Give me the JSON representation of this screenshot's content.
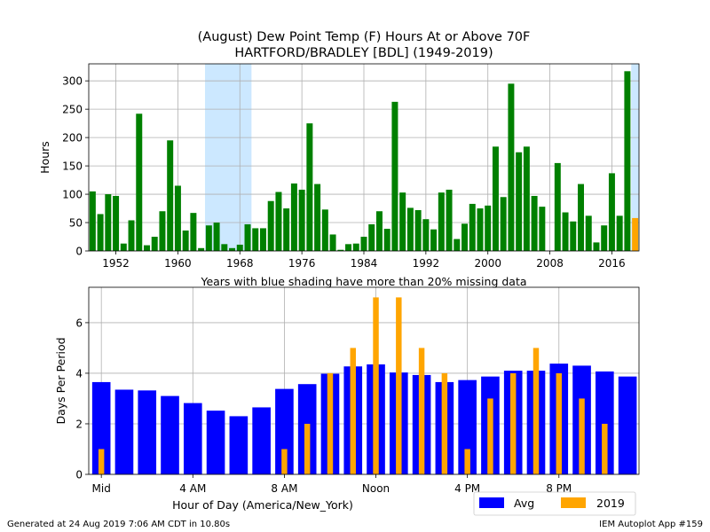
{
  "title_line1": "(August) Dew Point Temp (F) Hours At or Above 70F",
  "title_line2": "HARTFORD/BRADLEY [BDL] (1949-2019)",
  "footer_left": "Generated at 24 Aug 2019 7:06 AM CDT in 10.80s",
  "footer_right": "IEM Autoplot App #159",
  "colors": {
    "bar": "#008000",
    "current": "#ffa500",
    "missing_shade": "#cce8ff",
    "avg": "#0000ff",
    "grid": "#b0b0b0"
  },
  "chart_data": [
    {
      "type": "bar",
      "ylabel": "Hours",
      "note": "Years with blue shading have more than 20% missing data",
      "xlim": [
        1948.5,
        2019.5
      ],
      "ylim": [
        0,
        330
      ],
      "xticks": [
        1952,
        1960,
        1968,
        1976,
        1984,
        1992,
        2000,
        2008,
        2016
      ],
      "yticks": [
        0,
        50,
        100,
        150,
        200,
        250,
        300
      ],
      "grid": true,
      "years": [
        1949,
        1950,
        1951,
        1952,
        1953,
        1954,
        1955,
        1956,
        1957,
        1958,
        1959,
        1960,
        1961,
        1962,
        1963,
        1964,
        1965,
        1966,
        1967,
        1968,
        1969,
        1970,
        1971,
        1972,
        1973,
        1974,
        1975,
        1976,
        1977,
        1978,
        1979,
        1980,
        1981,
        1982,
        1983,
        1984,
        1985,
        1986,
        1987,
        1988,
        1989,
        1990,
        1991,
        1992,
        1993,
        1994,
        1995,
        1996,
        1997,
        1998,
        1999,
        2000,
        2001,
        2002,
        2003,
        2004,
        2005,
        2006,
        2007,
        2008,
        2009,
        2010,
        2011,
        2012,
        2013,
        2014,
        2015,
        2016,
        2017,
        2018,
        2019
      ],
      "values": [
        105,
        65,
        100,
        97,
        13,
        54,
        242,
        10,
        25,
        70,
        195,
        115,
        36,
        67,
        5,
        45,
        50,
        12,
        5,
        11,
        47,
        40,
        40,
        88,
        104,
        75,
        119,
        108,
        225,
        118,
        73,
        29,
        2,
        12,
        13,
        25,
        47,
        70,
        39,
        263,
        103,
        76,
        72,
        56,
        38,
        103,
        108,
        21,
        48,
        83,
        75,
        80,
        184,
        95,
        295,
        174,
        184,
        97,
        78,
        0,
        155,
        68,
        52,
        118,
        62,
        15,
        45,
        137,
        62,
        317,
        58
      ],
      "highlight_year": 2019,
      "shaded_years": [
        1964,
        1965,
        1966,
        1967,
        1968,
        1969,
        2019
      ]
    },
    {
      "type": "bar",
      "xlabel": "Hour of Day (America/New_York)",
      "ylabel": "Days Per Period",
      "xlim": [
        -0.55,
        23.5
      ],
      "ylim": [
        0,
        7.4
      ],
      "xticks": [
        0,
        4,
        8,
        12,
        16,
        20
      ],
      "xticklabels": [
        "Mid",
        "4 AM",
        "8 AM",
        "Noon",
        "4 PM",
        "8 PM"
      ],
      "yticks": [
        0,
        2,
        4,
        6
      ],
      "grid": true,
      "legend": "lower-right",
      "categories": [
        0,
        1,
        2,
        3,
        4,
        5,
        6,
        7,
        8,
        9,
        10,
        11,
        12,
        13,
        14,
        15,
        16,
        17,
        18,
        19,
        20,
        21,
        22,
        23
      ],
      "series": [
        {
          "name": "Avg",
          "values": [
            3.65,
            3.35,
            3.32,
            3.1,
            2.82,
            2.52,
            2.3,
            2.65,
            3.38,
            3.57,
            3.98,
            4.27,
            4.35,
            4.03,
            3.93,
            3.65,
            3.73,
            3.87,
            4.1,
            4.1,
            4.38,
            4.3,
            4.07,
            3.87
          ]
        },
        {
          "name": "2019",
          "values": [
            1,
            0,
            0,
            0,
            0,
            0,
            0,
            0,
            1,
            2,
            4,
            5,
            7,
            7,
            5,
            4,
            1,
            3,
            4,
            5,
            4,
            3,
            2,
            0
          ]
        }
      ]
    }
  ]
}
